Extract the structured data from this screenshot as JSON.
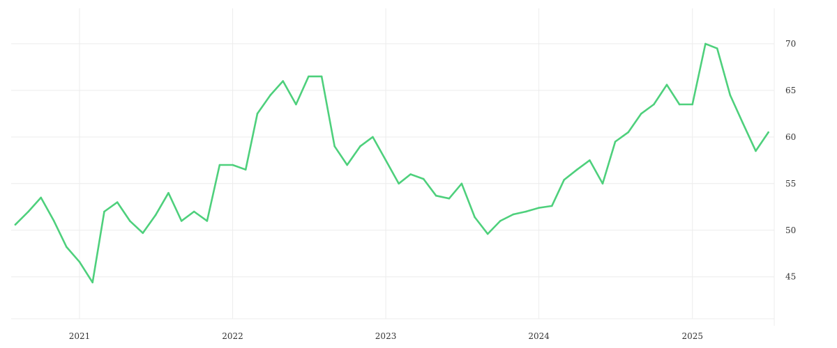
{
  "chart_data": {
    "type": "line",
    "title": "",
    "xlabel": "",
    "ylabel": "",
    "x_tick_labels": [
      "2021",
      "2022",
      "2023",
      "2024",
      "2025"
    ],
    "y_tick_labels": [
      "45",
      "50",
      "55",
      "60",
      "65",
      "70"
    ],
    "y_ticks": [
      45,
      50,
      55,
      60,
      65,
      70
    ],
    "ylim": [
      40.5,
      73.8
    ],
    "xlim": [
      "2020-07-22",
      "2025-07-15"
    ],
    "y_axis_position": "right",
    "grid": true,
    "colors": {
      "line": "#4ed07c",
      "grid": "#ececec",
      "text": "#333333"
    },
    "series": [
      {
        "x": [
          "2020-08-01",
          "2020-09-01",
          "2020-10-01",
          "2020-11-01",
          "2020-12-01",
          "2021-01-01",
          "2021-02-01",
          "2021-03-01",
          "2021-04-01",
          "2021-05-01",
          "2021-06-01",
          "2021-07-01",
          "2021-08-01",
          "2021-09-01",
          "2021-10-01",
          "2021-11-01",
          "2021-12-01",
          "2022-01-01",
          "2022-02-01",
          "2022-03-01",
          "2022-04-01",
          "2022-05-01",
          "2022-06-01",
          "2022-07-01",
          "2022-08-01",
          "2022-09-01",
          "2022-10-01",
          "2022-11-01",
          "2022-12-01",
          "2023-01-01",
          "2023-02-01",
          "2023-03-01",
          "2023-04-01",
          "2023-05-01",
          "2023-06-01",
          "2023-07-01",
          "2023-08-01",
          "2023-09-01",
          "2023-10-01",
          "2023-11-01",
          "2023-12-01",
          "2024-01-01",
          "2024-02-01",
          "2024-03-01",
          "2024-04-01",
          "2024-05-01",
          "2024-06-01",
          "2024-07-01",
          "2024-08-01",
          "2024-09-01",
          "2024-10-01",
          "2024-11-01",
          "2024-12-01",
          "2025-01-01",
          "2025-02-01",
          "2025-03-01",
          "2025-04-01",
          "2025-05-01",
          "2025-06-01",
          "2025-07-01"
        ],
        "y": [
          50.6,
          52.0,
          53.5,
          51.0,
          48.2,
          46.6,
          44.4,
          52.0,
          53.0,
          51.0,
          49.7,
          51.6,
          54.0,
          51.0,
          52.0,
          51.0,
          57.0,
          57.0,
          56.5,
          62.5,
          64.5,
          66.0,
          63.5,
          66.5,
          66.5,
          59.0,
          57.0,
          59.0,
          60.0,
          57.5,
          55.0,
          56.0,
          55.5,
          53.7,
          53.4,
          55.0,
          51.4,
          49.6,
          51.0,
          51.7,
          52.0,
          52.4,
          52.6,
          55.4,
          56.5,
          57.5,
          55.0,
          59.5,
          60.5,
          62.5,
          63.5,
          65.6,
          63.5,
          63.5,
          70.0,
          69.5,
          64.5,
          61.5,
          58.5,
          60.5
        ]
      }
    ]
  }
}
